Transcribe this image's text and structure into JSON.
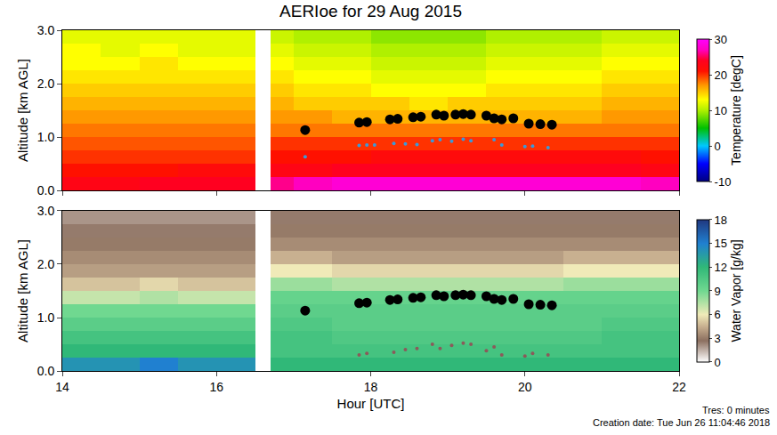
{
  "chart_data": [
    {
      "type": "heatmap",
      "title": "AERIoe for 29 Aug 2015",
      "ylabel": "Altitude [km AGL]",
      "tick_labels": "y",
      "xlim": [
        14,
        22
      ],
      "xticks": [
        14,
        16,
        18,
        20,
        22
      ],
      "ylim": [
        0,
        3
      ],
      "yticks": [
        {
          "value": 0,
          "label": "0.0"
        },
        {
          "value": 1,
          "label": "1.0"
        },
        {
          "value": 2,
          "label": "2.0"
        },
        {
          "value": 3,
          "label": "3.0"
        }
      ],
      "x_edges": [
        14,
        14.5,
        15,
        15.5,
        16,
        16.5,
        16.7,
        17,
        17.5,
        18,
        18.5,
        19,
        19.5,
        20,
        20.5,
        21,
        21.5,
        22
      ],
      "y_edges": [
        0,
        0.25,
        0.5,
        0.75,
        1,
        1.25,
        1.5,
        1.75,
        2,
        2.25,
        2.5,
        2.75,
        3
      ],
      "cells": [
        [
          23,
          23,
          24,
          24,
          24,
          null,
          26,
          27,
          28,
          28,
          28,
          28,
          28,
          28,
          28,
          28,
          27
        ],
        [
          21,
          21,
          21,
          22,
          22,
          null,
          23,
          23,
          24,
          24,
          24,
          24,
          24,
          24,
          24,
          24,
          23
        ],
        [
          20,
          20,
          20,
          20,
          20,
          null,
          21,
          21,
          21,
          22,
          22,
          22,
          22,
          22,
          22,
          22,
          21
        ],
        [
          19,
          19,
          19,
          19,
          19,
          null,
          20,
          20,
          20,
          20,
          20,
          20,
          20,
          20,
          20,
          20,
          20
        ],
        [
          18,
          18,
          18,
          18,
          18,
          null,
          18,
          18,
          18,
          18,
          18,
          18,
          18,
          18,
          18,
          18,
          18
        ],
        [
          17,
          17,
          17,
          17,
          17,
          null,
          17,
          17,
          16,
          16,
          16,
          16,
          16,
          16,
          16,
          17,
          17
        ],
        [
          16,
          16,
          16,
          16,
          16,
          null,
          16,
          15,
          15,
          15,
          14,
          15,
          15,
          15,
          15,
          16,
          16
        ],
        [
          15,
          15,
          15,
          15,
          15,
          null,
          15,
          14,
          14,
          13,
          13,
          13,
          14,
          14,
          14,
          15,
          15
        ],
        [
          14,
          14,
          14,
          14,
          14,
          null,
          14,
          13,
          13,
          12,
          12,
          12,
          13,
          13,
          13,
          14,
          14
        ],
        [
          13,
          13,
          14,
          13,
          13,
          null,
          13,
          12,
          12,
          11,
          11,
          11,
          12,
          12,
          12,
          13,
          13
        ],
        [
          13,
          12,
          13,
          12,
          12,
          null,
          12,
          11,
          11,
          10,
          10,
          10,
          11,
          11,
          11,
          12,
          12
        ],
        [
          12,
          12,
          12,
          12,
          12,
          null,
          11,
          10,
          10,
          9,
          9,
          9,
          10,
          10,
          10,
          11,
          11
        ]
      ],
      "colorbar_label": "Temperature [degC]",
      "colorbar_range": [
        -10,
        30
      ],
      "colorbar_ticks": [
        -10,
        0,
        10,
        20,
        30
      ],
      "colorscale": [
        [
          0,
          "#000080"
        ],
        [
          0.125,
          "#0000ff"
        ],
        [
          0.25,
          "#00c8ff"
        ],
        [
          0.375,
          "#00c000"
        ],
        [
          0.5,
          "#b0f000"
        ],
        [
          0.575,
          "#ffff00"
        ],
        [
          0.675,
          "#ff9900"
        ],
        [
          0.775,
          "#ff1000"
        ],
        [
          0.85,
          "#ff0020"
        ],
        [
          0.925,
          "#ff00c0"
        ],
        [
          1,
          "#ff00ff"
        ]
      ],
      "series": [
        {
          "type": "scatter",
          "marker": "circle",
          "color": "#000000",
          "x": [
            17.15,
            17.85,
            17.95,
            18.25,
            18.35,
            18.55,
            18.65,
            18.85,
            18.95,
            19.1,
            19.2,
            19.3,
            19.5,
            19.6,
            19.7,
            19.85,
            20.05,
            20.2,
            20.35
          ],
          "y": [
            1.13,
            1.27,
            1.28,
            1.33,
            1.34,
            1.37,
            1.38,
            1.42,
            1.4,
            1.42,
            1.43,
            1.42,
            1.4,
            1.35,
            1.33,
            1.35,
            1.25,
            1.24,
            1.23
          ]
        },
        {
          "type": "scatter",
          "marker": "dot",
          "color": "#3a9ad9",
          "x": [
            17.15,
            17.85,
            17.95,
            18.05,
            18.3,
            18.45,
            18.6,
            18.8,
            18.9,
            19.05,
            19.2,
            19.3,
            19.6,
            19.7,
            20.0,
            20.1,
            20.3
          ],
          "y": [
            0.63,
            0.84,
            0.85,
            0.85,
            0.88,
            0.87,
            0.86,
            0.93,
            0.95,
            0.92,
            0.96,
            0.93,
            0.95,
            0.85,
            0.82,
            0.83,
            0.8
          ]
        }
      ]
    },
    {
      "type": "heatmap",
      "xlabel": "Hour [UTC]",
      "ylabel": "Altitude [km AGL]",
      "xlim": [
        14,
        22
      ],
      "xticks": [
        14,
        16,
        18,
        20,
        22
      ],
      "ylim": [
        0,
        3
      ],
      "yticks": [
        {
          "value": 0,
          "label": "0.0"
        },
        {
          "value": 1,
          "label": "1.0"
        },
        {
          "value": 2,
          "label": "2.0"
        },
        {
          "value": 3,
          "label": "3.0"
        }
      ],
      "x_edges": [
        14,
        14.5,
        15,
        15.5,
        16,
        16.5,
        16.7,
        17,
        17.5,
        18,
        18.5,
        19,
        19.5,
        20,
        20.5,
        21,
        21.5,
        22
      ],
      "y_edges": [
        0,
        0.25,
        0.5,
        0.75,
        1,
        1.25,
        1.5,
        1.75,
        2,
        2.25,
        2.5,
        2.75,
        3
      ],
      "cells": [
        [
          14,
          14,
          15,
          14,
          14,
          null,
          12,
          12,
          12,
          12,
          12,
          12,
          12,
          12,
          12,
          12,
          12
        ],
        [
          12,
          12,
          12,
          12,
          12,
          null,
          11,
          11,
          11,
          11,
          11,
          11,
          11,
          11,
          11,
          11,
          11
        ],
        [
          11,
          11,
          11,
          11,
          11,
          null,
          11,
          11,
          10.5,
          10.5,
          10.5,
          10.5,
          10.5,
          10.5,
          10.5,
          11,
          11
        ],
        [
          10,
          10,
          10,
          10,
          10,
          null,
          10.5,
          10.5,
          10,
          10,
          10,
          10,
          10,
          10,
          10,
          10.5,
          10.5
        ],
        [
          9,
          9,
          9,
          9,
          9,
          null,
          10,
          10,
          10,
          10,
          10,
          10,
          10,
          10,
          10,
          10,
          10
        ],
        [
          7,
          7,
          7.5,
          7,
          7,
          null,
          9.5,
          9.5,
          9.5,
          9.5,
          9.5,
          9.5,
          9.5,
          9.5,
          9.5,
          9.5,
          9.5
        ],
        [
          5,
          5,
          5.5,
          5,
          5,
          null,
          8,
          8,
          7.5,
          7.5,
          7.5,
          7.5,
          7.5,
          7.5,
          8,
          8,
          8
        ],
        [
          4,
          4,
          4,
          4,
          4,
          null,
          6,
          6,
          5.5,
          5.5,
          5.5,
          5.5,
          5.5,
          5.5,
          6,
          6,
          6
        ],
        [
          3.5,
          3.5,
          3.5,
          3.5,
          3.5,
          null,
          4.5,
          4.5,
          4,
          4,
          4,
          4,
          4,
          4,
          4.5,
          4.5,
          4.5
        ],
        [
          3,
          3,
          3,
          3,
          3,
          null,
          3.5,
          3.5,
          3.5,
          3.5,
          3.5,
          3.5,
          3.5,
          3.5,
          3.5,
          3.5,
          3.5
        ],
        [
          2.5,
          2.5,
          2.5,
          2.5,
          2.5,
          null,
          3,
          3,
          3,
          3,
          3,
          3,
          3,
          3,
          3,
          3,
          3
        ],
        [
          2,
          2,
          2,
          2,
          2,
          null,
          2.5,
          2.5,
          2.5,
          2.5,
          2.5,
          2.5,
          2.5,
          2.5,
          2.5,
          2.5,
          2.5
        ]
      ],
      "colorbar_label": "Water Vapor [g/kg]",
      "colorbar_range": [
        0,
        18
      ],
      "colorbar_ticks": [
        0,
        3,
        6,
        9,
        12,
        15,
        18
      ],
      "colorscale": [
        [
          0,
          "#ffffff"
        ],
        [
          0.15,
          "#8c7060"
        ],
        [
          0.25,
          "#c8b090"
        ],
        [
          0.333,
          "#f0eab8"
        ],
        [
          0.5,
          "#70d890"
        ],
        [
          0.667,
          "#30b878"
        ],
        [
          0.833,
          "#2080d0"
        ],
        [
          1,
          "#203880"
        ]
      ],
      "series": [
        {
          "type": "scatter",
          "marker": "circle",
          "color": "#000000",
          "x": [
            17.15,
            17.85,
            17.95,
            18.25,
            18.35,
            18.55,
            18.65,
            18.85,
            18.95,
            19.1,
            19.2,
            19.3,
            19.5,
            19.6,
            19.7,
            19.85,
            20.05,
            20.2,
            20.35
          ],
          "y": [
            1.13,
            1.27,
            1.28,
            1.33,
            1.34,
            1.37,
            1.38,
            1.42,
            1.4,
            1.42,
            1.43,
            1.42,
            1.4,
            1.35,
            1.33,
            1.35,
            1.25,
            1.24,
            1.23
          ]
        },
        {
          "type": "scatter",
          "marker": "dot",
          "color": "#8b5a5a",
          "x": [
            17.85,
            17.95,
            18.3,
            18.45,
            18.6,
            18.8,
            18.9,
            19.05,
            19.2,
            19.3,
            19.5,
            19.6,
            19.7,
            20.0,
            20.1,
            20.3
          ],
          "y": [
            0.3,
            0.33,
            0.35,
            0.4,
            0.42,
            0.5,
            0.42,
            0.48,
            0.52,
            0.5,
            0.38,
            0.45,
            0.3,
            0.28,
            0.33,
            0.3
          ]
        }
      ],
      "annotations": [
        "Tres: 0 minutes",
        "Creation date: Tue Jun 26 11:04:46 2018"
      ]
    }
  ]
}
